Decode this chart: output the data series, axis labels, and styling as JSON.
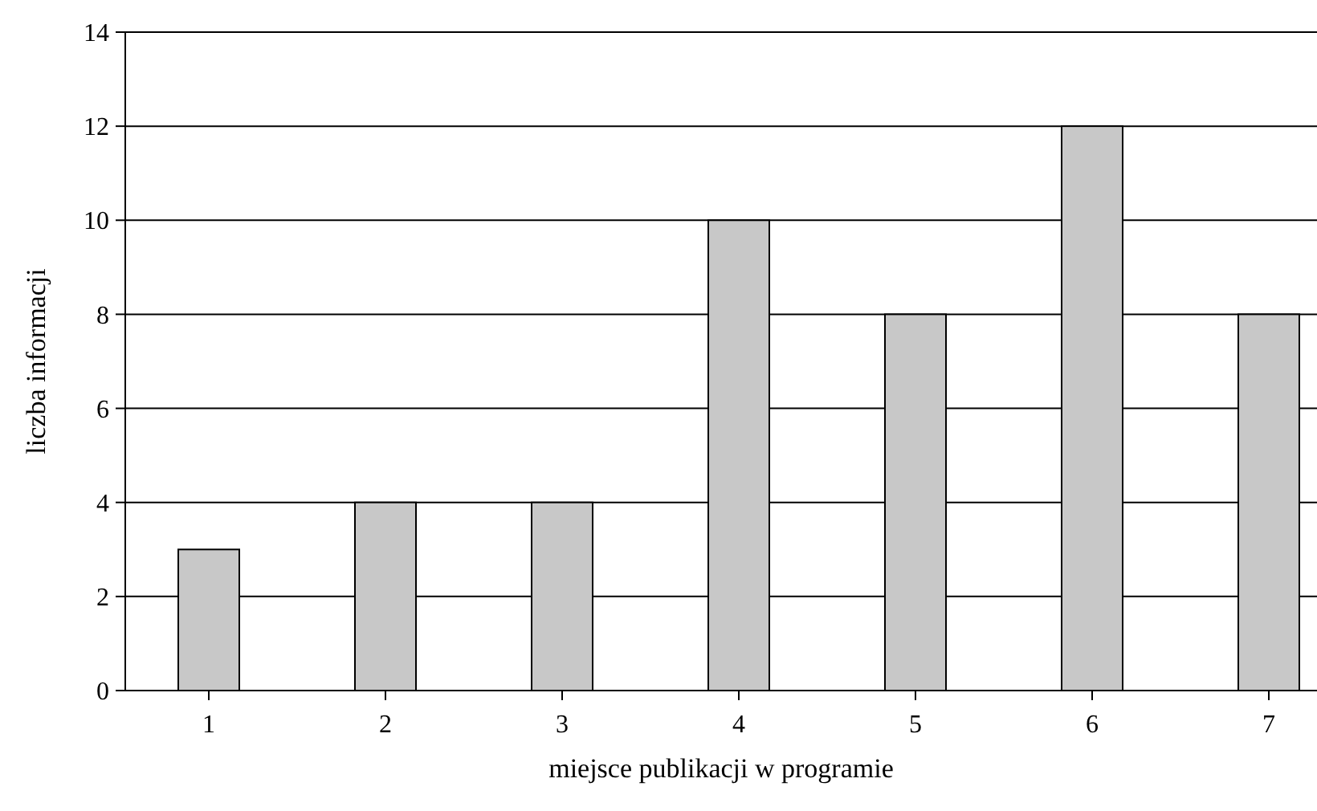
{
  "chart_data": {
    "type": "bar",
    "xlabel": "miejsce publikacji w programie",
    "ylabel": "liczba informacji",
    "categories": [
      "1",
      "2",
      "3",
      "4",
      "5",
      "6",
      "7"
    ],
    "values": [
      3,
      4,
      4,
      10,
      8,
      12,
      8
    ],
    "color": "#c8c8c8",
    "ylim": [
      0,
      14
    ],
    "yticks": [
      0,
      2,
      4,
      6,
      8,
      10,
      12,
      14
    ],
    "grid": "y"
  }
}
